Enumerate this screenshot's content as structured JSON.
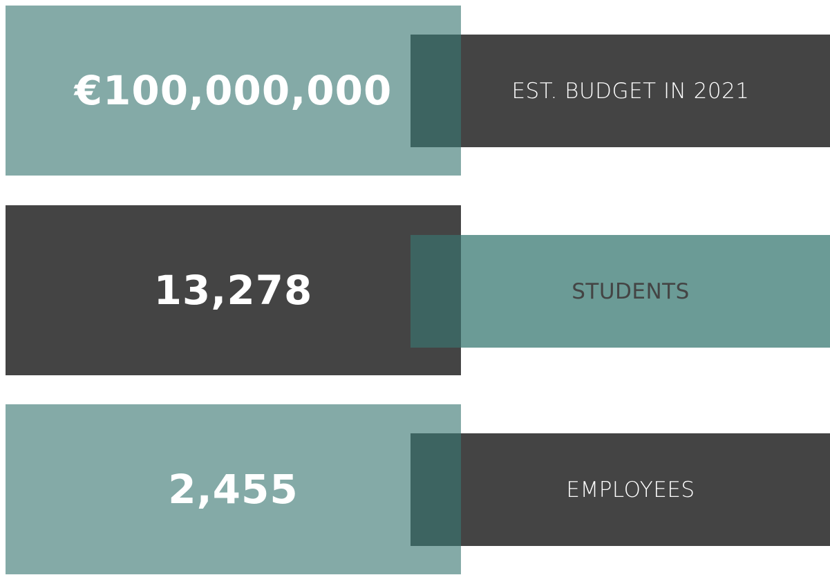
{
  "stats": [
    {
      "value": "€100,000,000",
      "label": "EST. BUDGET IN 2021"
    },
    {
      "value": "13,278",
      "label": "STUDENTS"
    },
    {
      "value": "2,455",
      "label": "EMPLOYEES"
    }
  ]
}
